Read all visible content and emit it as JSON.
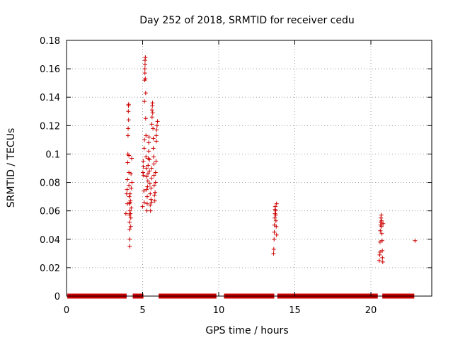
{
  "chart_data": {
    "type": "scatter",
    "title": "Day 252 of 2018, SRMTID for receiver cedu",
    "xlabel": "GPS time / hours",
    "ylabel": "SRMTID / TECUs",
    "xlim": [
      0,
      24
    ],
    "ylim": [
      0,
      0.18
    ],
    "xticks": [
      0,
      5,
      10,
      15,
      20
    ],
    "yticks": [
      0,
      0.02,
      0.04,
      0.06,
      0.08,
      0.1,
      0.12,
      0.14,
      0.16,
      0.18
    ],
    "xtick_labels": [
      "0",
      "5",
      "10",
      "15",
      "20"
    ],
    "ytick_labels": [
      "0",
      "0.02",
      "0.04",
      "0.06",
      "0.08",
      "0.1",
      "0.12",
      "0.14",
      "0.16",
      "0.18"
    ],
    "grid": true,
    "marker": "plus",
    "series_color": "#cc0000",
    "zero_segments": [
      [
        0.05,
        3.95
      ],
      [
        4.35,
        5.05
      ],
      [
        6.05,
        9.85
      ],
      [
        10.35,
        13.65
      ],
      [
        13.85,
        20.45
      ],
      [
        20.75,
        22.85
      ]
    ],
    "points": [
      [
        3.9,
        0.058
      ],
      [
        3.95,
        0.072
      ],
      [
        3.98,
        0.075
      ],
      [
        4.0,
        0.065
      ],
      [
        4.0,
        0.082
      ],
      [
        4.02,
        0.094
      ],
      [
        4.03,
        0.1
      ],
      [
        4.04,
        0.113
      ],
      [
        4.05,
        0.118
      ],
      [
        4.06,
        0.13
      ],
      [
        4.07,
        0.134
      ],
      [
        4.08,
        0.135
      ],
      [
        4.08,
        0.124
      ],
      [
        4.1,
        0.099
      ],
      [
        4.1,
        0.087
      ],
      [
        4.1,
        0.078
      ],
      [
        4.12,
        0.07
      ],
      [
        4.12,
        0.065
      ],
      [
        4.13,
        0.057
      ],
      [
        4.14,
        0.052
      ],
      [
        4.14,
        0.047
      ],
      [
        4.15,
        0.04
      ],
      [
        4.15,
        0.035
      ],
      [
        4.16,
        0.06
      ],
      [
        4.18,
        0.066
      ],
      [
        4.18,
        0.072
      ],
      [
        4.2,
        0.067
      ],
      [
        4.2,
        0.058
      ],
      [
        4.22,
        0.055
      ],
      [
        4.22,
        0.049
      ],
      [
        4.24,
        0.086
      ],
      [
        4.25,
        0.076
      ],
      [
        4.25,
        0.062
      ],
      [
        4.28,
        0.097
      ],
      [
        4.3,
        0.08
      ],
      [
        5.0,
        0.063
      ],
      [
        5.02,
        0.087
      ],
      [
        5.04,
        0.095
      ],
      [
        5.05,
        0.091
      ],
      [
        5.06,
        0.085
      ],
      [
        5.08,
        0.074
      ],
      [
        5.1,
        0.066
      ],
      [
        5.1,
        0.104
      ],
      [
        5.12,
        0.11
      ],
      [
        5.12,
        0.137
      ],
      [
        5.14,
        0.152
      ],
      [
        5.15,
        0.157
      ],
      [
        5.15,
        0.16
      ],
      [
        5.16,
        0.163
      ],
      [
        5.16,
        0.166
      ],
      [
        5.18,
        0.168
      ],
      [
        5.18,
        0.153
      ],
      [
        5.2,
        0.143
      ],
      [
        5.2,
        0.125
      ],
      [
        5.22,
        0.113
      ],
      [
        5.22,
        0.098
      ],
      [
        5.24,
        0.09
      ],
      [
        5.25,
        0.084
      ],
      [
        5.26,
        0.075
      ],
      [
        5.28,
        0.06
      ],
      [
        5.3,
        0.065
      ],
      [
        5.3,
        0.07
      ],
      [
        5.32,
        0.077
      ],
      [
        5.34,
        0.081
      ],
      [
        5.35,
        0.086
      ],
      [
        5.36,
        0.092
      ],
      [
        5.38,
        0.097
      ],
      [
        5.4,
        0.102
      ],
      [
        5.4,
        0.108
      ],
      [
        5.42,
        0.112
      ],
      [
        5.45,
        0.096
      ],
      [
        5.45,
        0.088
      ],
      [
        5.48,
        0.079
      ],
      [
        5.5,
        0.072
      ],
      [
        5.5,
        0.064
      ],
      [
        5.52,
        0.06
      ],
      [
        5.55,
        0.068
      ],
      [
        5.55,
        0.076
      ],
      [
        5.58,
        0.083
      ],
      [
        5.6,
        0.09
      ],
      [
        5.6,
        0.121
      ],
      [
        5.62,
        0.126
      ],
      [
        5.62,
        0.131
      ],
      [
        5.64,
        0.134
      ],
      [
        5.65,
        0.136
      ],
      [
        5.66,
        0.129
      ],
      [
        5.68,
        0.118
      ],
      [
        5.7,
        0.111
      ],
      [
        5.7,
        0.104
      ],
      [
        5.72,
        0.098
      ],
      [
        5.74,
        0.093
      ],
      [
        5.75,
        0.085
      ],
      [
        5.76,
        0.078
      ],
      [
        5.78,
        0.071
      ],
      [
        5.8,
        0.067
      ],
      [
        5.82,
        0.073
      ],
      [
        5.85,
        0.08
      ],
      [
        5.85,
        0.087
      ],
      [
        5.88,
        0.095
      ],
      [
        5.9,
        0.109
      ],
      [
        5.9,
        0.113
      ],
      [
        5.92,
        0.117
      ],
      [
        5.95,
        0.12
      ],
      [
        5.98,
        0.123
      ],
      [
        5.6,
        0.066
      ],
      [
        13.6,
        0.03
      ],
      [
        13.62,
        0.033
      ],
      [
        13.64,
        0.04
      ],
      [
        13.65,
        0.045
      ],
      [
        13.66,
        0.05
      ],
      [
        13.68,
        0.055
      ],
      [
        13.7,
        0.058
      ],
      [
        13.7,
        0.061
      ],
      [
        13.72,
        0.063
      ],
      [
        13.74,
        0.06
      ],
      [
        13.75,
        0.057
      ],
      [
        13.76,
        0.053
      ],
      [
        13.78,
        0.049
      ],
      [
        13.8,
        0.043
      ],
      [
        13.8,
        0.065
      ],
      [
        20.55,
        0.025
      ],
      [
        20.58,
        0.029
      ],
      [
        20.6,
        0.031
      ],
      [
        20.6,
        0.038
      ],
      [
        20.62,
        0.046
      ],
      [
        20.64,
        0.05
      ],
      [
        20.65,
        0.052
      ],
      [
        20.66,
        0.055
      ],
      [
        20.68,
        0.057
      ],
      [
        20.7,
        0.053
      ],
      [
        20.7,
        0.049
      ],
      [
        20.72,
        0.044
      ],
      [
        20.74,
        0.039
      ],
      [
        20.75,
        0.032
      ],
      [
        20.76,
        0.027
      ],
      [
        20.78,
        0.024
      ],
      [
        20.8,
        0.051
      ],
      [
        22.9,
        0.039
      ]
    ]
  }
}
